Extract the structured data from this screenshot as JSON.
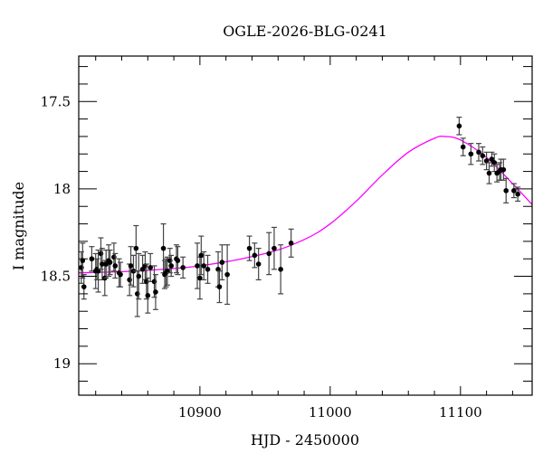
{
  "chart_data": {
    "type": "scatter",
    "title": "OGLE-2026-BLG-0241",
    "xlabel": "HJD - 2450000",
    "ylabel": "I magnitude",
    "xlim": [
      10807,
      11155
    ],
    "ylim": [
      19.18,
      17.24
    ],
    "y_inverted": true,
    "grid": false,
    "xticks": [
      10900,
      11000,
      11100
    ],
    "xtick_labels": [
      "10900",
      "11000",
      "11100"
    ],
    "yticks": [
      17.5,
      18,
      18.5,
      19
    ],
    "ytick_labels": [
      "17.5",
      "18",
      "18.5",
      "19"
    ],
    "x_minor_step": 20,
    "y_minor_step": 0.1,
    "colors": {
      "points": "#000000",
      "errorbars": "#444444",
      "model": "#ff00ff"
    },
    "series": [
      {
        "name": "data",
        "points": [
          [
            10809,
            18.45,
            0.09
          ],
          [
            10810,
            18.41,
            0.1
          ],
          [
            10811,
            18.56,
            0.07
          ],
          [
            10817,
            18.4,
            0.07
          ],
          [
            10820,
            18.47,
            0.1
          ],
          [
            10821,
            18.46,
            0.06
          ],
          [
            10822,
            18.47,
            0.12
          ],
          [
            10824,
            18.37,
            0.09
          ],
          [
            10825,
            18.43,
            0.09
          ],
          [
            10827,
            18.51,
            0.1
          ],
          [
            10828,
            18.43,
            0.08
          ],
          [
            10830,
            18.41,
            0.09
          ],
          [
            10831,
            18.42,
            0.07
          ],
          [
            10834,
            18.39,
            0.08
          ],
          [
            10835,
            18.44,
            0.07
          ],
          [
            10838,
            18.48,
            0.08
          ],
          [
            10839,
            18.49,
            0.07
          ],
          [
            10846,
            18.52,
            0.09
          ],
          [
            10847,
            18.44,
            0.11
          ],
          [
            10849,
            18.47,
            0.09
          ],
          [
            10851,
            18.34,
            0.13
          ],
          [
            10852,
            18.6,
            0.13
          ],
          [
            10853,
            18.5,
            0.13
          ],
          [
            10856,
            18.46,
            0.08
          ],
          [
            10858,
            18.44,
            0.08
          ],
          [
            10859,
            18.53,
            0.1
          ],
          [
            10860,
            18.61,
            0.1
          ],
          [
            10862,
            18.45,
            0.08
          ],
          [
            10865,
            18.53,
            0.09
          ],
          [
            10866,
            18.59,
            0.1
          ],
          [
            10872,
            18.34,
            0.14
          ],
          [
            10873,
            18.49,
            0.08
          ],
          [
            10874,
            18.48,
            0.08
          ],
          [
            10875,
            18.47,
            0.08
          ],
          [
            10877,
            18.41,
            0.07
          ],
          [
            10878,
            18.44,
            0.06
          ],
          [
            10882,
            18.4,
            0.08
          ],
          [
            10883,
            18.41,
            0.08
          ],
          [
            10887,
            18.45,
            0.06
          ],
          [
            10898,
            18.44,
            0.13
          ],
          [
            10900,
            18.51,
            0.12
          ],
          [
            10901,
            18.38,
            0.11
          ],
          [
            10903,
            18.44,
            0.08
          ],
          [
            10906,
            18.46,
            0.08
          ],
          [
            10914,
            18.46,
            0.1
          ],
          [
            10915,
            18.56,
            0.09
          ],
          [
            10917,
            18.42,
            0.1
          ],
          [
            10921,
            18.49,
            0.17
          ],
          [
            10938,
            18.34,
            0.07
          ],
          [
            10942,
            18.38,
            0.07
          ],
          [
            10945,
            18.43,
            0.09
          ],
          [
            10953,
            18.37,
            0.12
          ],
          [
            10957,
            18.34,
            0.12
          ],
          [
            10962,
            18.46,
            0.14
          ],
          [
            10970,
            18.31,
            0.08
          ],
          [
            11099,
            17.64,
            0.05
          ],
          [
            11102,
            17.76,
            0.05
          ],
          [
            11108,
            17.8,
            0.06
          ],
          [
            11114,
            17.79,
            0.05
          ],
          [
            11117,
            17.81,
            0.05
          ],
          [
            11120,
            17.84,
            0.05
          ],
          [
            11122,
            17.91,
            0.06
          ],
          [
            11124,
            17.83,
            0.04
          ],
          [
            11126,
            17.85,
            0.05
          ],
          [
            11128,
            17.91,
            0.05
          ],
          [
            11130,
            17.9,
            0.05
          ],
          [
            11131,
            17.89,
            0.06
          ],
          [
            11133,
            17.89,
            0.06
          ],
          [
            11135,
            18.01,
            0.07
          ],
          [
            11141,
            18.01,
            0.04
          ],
          [
            11144,
            18.03,
            0.04
          ]
        ]
      },
      {
        "name": "model",
        "type": "line",
        "points": [
          [
            10807,
            18.48
          ],
          [
            10850,
            18.47
          ],
          [
            10900,
            18.44
          ],
          [
            10950,
            18.37
          ],
          [
            10980,
            18.29
          ],
          [
            11000,
            18.2
          ],
          [
            11020,
            18.07
          ],
          [
            11040,
            17.92
          ],
          [
            11060,
            17.79
          ],
          [
            11080,
            17.71
          ],
          [
            11088,
            17.7
          ],
          [
            11100,
            17.72
          ],
          [
            11120,
            17.82
          ],
          [
            11140,
            17.97
          ],
          [
            11155,
            18.09
          ]
        ]
      }
    ]
  }
}
